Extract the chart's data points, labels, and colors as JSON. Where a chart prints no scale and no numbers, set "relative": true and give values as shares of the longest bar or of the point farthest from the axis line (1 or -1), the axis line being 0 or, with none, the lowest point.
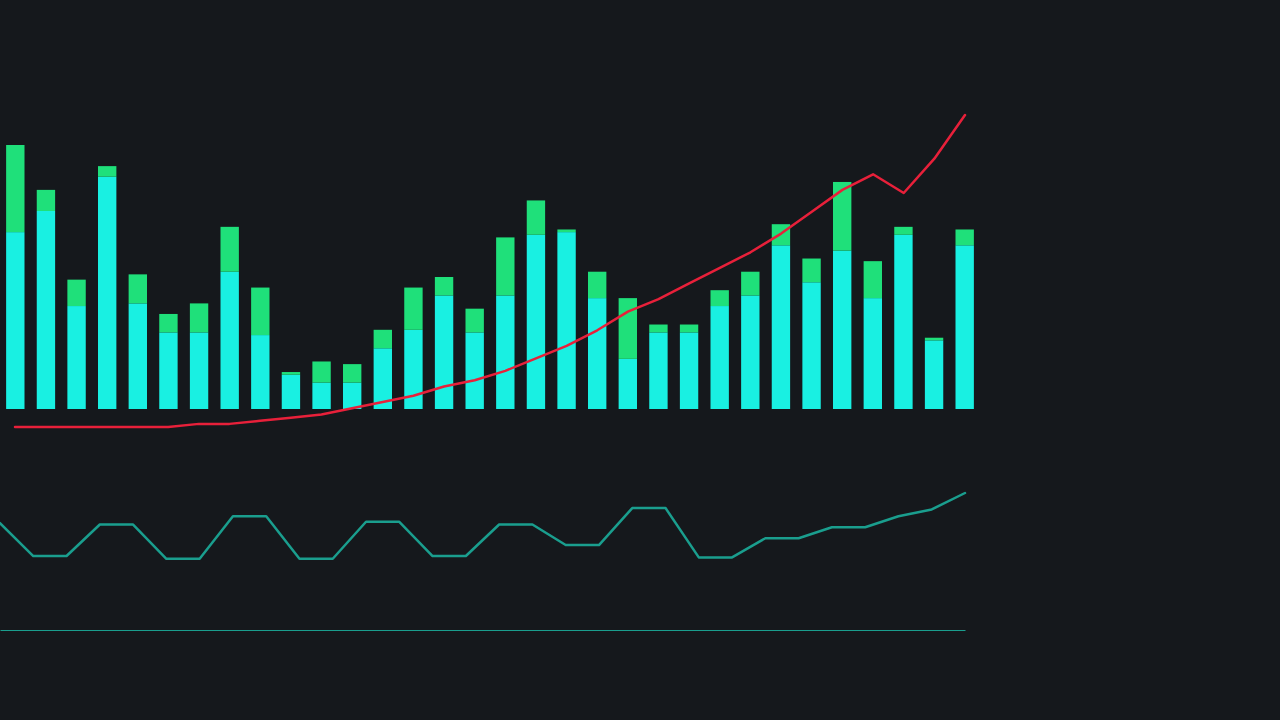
{
  "chart_data": [
    {
      "type": "bar",
      "relative": true,
      "stacked": true,
      "categories": [
        null,
        null,
        null,
        null,
        null,
        null,
        null,
        null,
        null,
        null,
        null,
        null,
        null,
        null,
        null,
        null,
        null,
        null,
        null,
        null,
        null,
        null,
        null,
        null,
        null,
        null,
        null,
        null,
        null,
        null,
        null,
        null
      ],
      "series": [
        {
          "color": "#19f0e2",
          "values": [
            0.67,
            0.75,
            0.39,
            0.88,
            0.4,
            0.29,
            0.29,
            0.52,
            0.28,
            0.13,
            0.1,
            0.1,
            0.23,
            0.3,
            0.43,
            0.29,
            0.43,
            0.66,
            0.67,
            0.42,
            0.19,
            0.29,
            0.29,
            0.39,
            0.43,
            0.62,
            0.48,
            0.6,
            0.42,
            0.66,
            0.26,
            0.62
          ]
        },
        {
          "color": "#1fe07a",
          "values": [
            0.33,
            0.08,
            0.1,
            0.04,
            0.11,
            0.07,
            0.11,
            0.17,
            0.18,
            0.01,
            0.08,
            0.07,
            0.07,
            0.16,
            0.07,
            0.09,
            0.22,
            0.13,
            0.01,
            0.1,
            0.23,
            0.03,
            0.03,
            0.06,
            0.09,
            0.08,
            0.09,
            0.26,
            0.14,
            0.03,
            0.01,
            0.06
          ]
        }
      ]
    },
    {
      "type": "line",
      "relative": true,
      "categories": [
        null,
        null,
        null,
        null,
        null,
        null,
        null,
        null,
        null,
        null,
        null,
        null,
        null,
        null,
        null,
        null,
        null,
        null,
        null,
        null,
        null,
        null,
        null,
        null,
        null,
        null,
        null,
        null,
        null,
        null,
        null,
        null
      ],
      "series": [
        {
          "color": "#e8203a",
          "values": [
            0,
            0,
            0,
            0,
            0,
            0,
            0.01,
            0.01,
            0.02,
            0.03,
            0.04,
            0.06,
            0.08,
            0.1,
            0.13,
            0.15,
            0.18,
            0.22,
            0.26,
            0.31,
            0.37,
            0.41,
            0.46,
            0.51,
            0.56,
            0.62,
            0.69,
            0.76,
            0.81,
            0.75,
            0.86,
            1.0
          ]
        }
      ]
    },
    {
      "type": "line",
      "relative": true,
      "categories": [
        null,
        null,
        null,
        null,
        null,
        null,
        null,
        null,
        null,
        null,
        null,
        null,
        null,
        null,
        null,
        null,
        null,
        null,
        null,
        null,
        null,
        null,
        null,
        null,
        null,
        null,
        null,
        null,
        null,
        null
      ],
      "series": [
        {
          "color": "#1a9e8e",
          "values": [
            0.78,
            0.54,
            0.54,
            0.77,
            0.77,
            0.52,
            0.52,
            0.83,
            0.83,
            0.52,
            0.52,
            0.79,
            0.79,
            0.54,
            0.54,
            0.77,
            0.77,
            0.62,
            0.62,
            0.89,
            0.89,
            0.53,
            0.53,
            0.67,
            0.67,
            0.75,
            0.75,
            0.83,
            0.88,
            1.0
          ]
        }
      ]
    }
  ]
}
